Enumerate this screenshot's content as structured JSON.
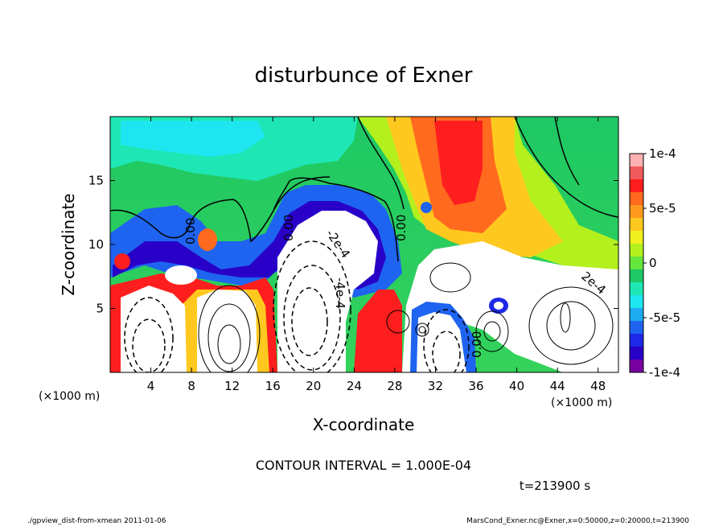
{
  "chart_data": {
    "type": "heatmap",
    "title": "disturbunce of Exner",
    "xlabel": "X-coordinate",
    "ylabel": "Z-coordinate",
    "x_unit": "(×1000 m)",
    "y_unit": "(×1000 m)",
    "x_ticks": [
      "4",
      "8",
      "12",
      "16",
      "20",
      "24",
      "28",
      "32",
      "36",
      "40",
      "44",
      "48"
    ],
    "y_ticks": [
      "5",
      "10",
      "15"
    ],
    "xlim": [
      0,
      50
    ],
    "ylim": [
      0,
      20
    ],
    "colorbar": {
      "tick_labels": [
        "1e-4",
        "5e-5",
        "0",
        "-5e-5",
        "-1e-4"
      ],
      "range": [
        -0.0001,
        0.0001
      ],
      "colors": [
        "#ffb0b0",
        "#f05a5a",
        "#ff1e1e",
        "#ff6a1e",
        "#ff9a1e",
        "#ffc81e",
        "#f0f01e",
        "#b4f01e",
        "#64e63c",
        "#1ec864",
        "#1ee6b4",
        "#1ee6f0",
        "#1eaaf0",
        "#1e64f0",
        "#1e28e6",
        "#2800c8",
        "#7800a0"
      ]
    },
    "contour_labels": [
      {
        "text": "0.00"
      },
      {
        "text": "0.00"
      },
      {
        "text": "0.00"
      },
      {
        "text": "-2e-4"
      },
      {
        "text": "-4e-4"
      },
      {
        "text": "2e-4"
      },
      {
        "text": "0.00"
      }
    ],
    "contour_interval": "CONTOUR INTERVAL = 1.000E-04",
    "time_label": "t=213900 s",
    "footer_left": "./gpview_dist-from-xmean  2011-01-06",
    "footer_right": "MarsCond_Exner.nc@Exner,x=0:50000,z=0:20000,t=213900"
  }
}
